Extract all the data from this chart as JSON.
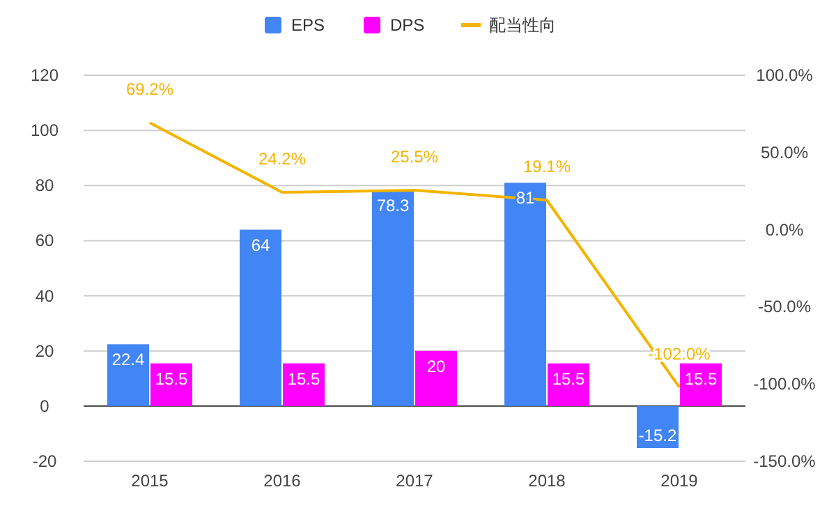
{
  "chart_data": {
    "type": "bar",
    "categories": [
      "2015",
      "2016",
      "2017",
      "2018",
      "2019"
    ],
    "series": [
      {
        "name": "EPS",
        "color": "#4285f4",
        "values": [
          22.4,
          64,
          78.3,
          81,
          -15.2
        ],
        "value_labels": [
          "22.4",
          "64",
          "78.3",
          "81",
          "-15.2"
        ]
      },
      {
        "name": "DPS",
        "color": "#ff00ff",
        "values": [
          15.5,
          15.5,
          20,
          15.5,
          15.5
        ],
        "value_labels": [
          "15.5",
          "15.5",
          "20",
          "15.5",
          "15.5"
        ]
      },
      {
        "name": "配当性向",
        "type": "line",
        "axis": "y2",
        "color": "#f4b400",
        "values": [
          69.2,
          24.2,
          25.5,
          19.1,
          -102.0
        ],
        "value_labels": [
          "69.2%",
          "24.2%",
          "25.5%",
          "19.1%",
          "-102.0%"
        ]
      }
    ],
    "ylim": [
      -20,
      120
    ],
    "yticks": [
      -20,
      0,
      20,
      40,
      60,
      80,
      100,
      120
    ],
    "y2lim": [
      -150,
      100
    ],
    "y2ticks": [
      {
        "value": -150,
        "label": "-150.0%"
      },
      {
        "value": -100,
        "label": "-100.0%"
      },
      {
        "value": -50,
        "label": "-50.0%"
      },
      {
        "value": 0,
        "label": "0.0%"
      },
      {
        "value": 50,
        "label": "50.0%"
      },
      {
        "value": 100,
        "label": "100.0%"
      }
    ],
    "grid": "y",
    "legend": "top"
  }
}
